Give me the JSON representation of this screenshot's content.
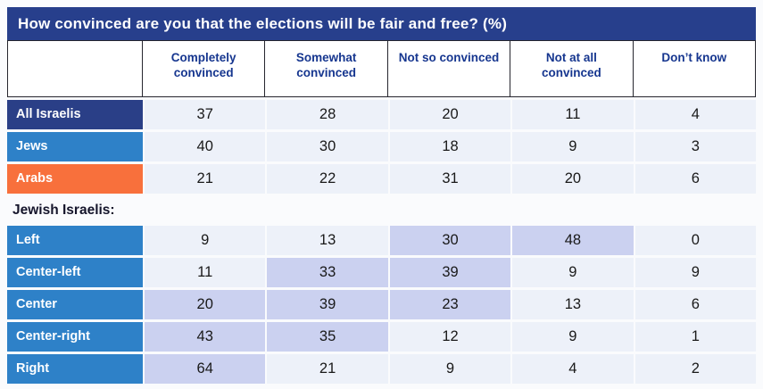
{
  "table": {
    "title": "How convinced are you that the elections will be fair and free? (%)",
    "header": [
      "",
      "Completely convinced",
      "Somewhat convinced",
      "Not so convinced",
      "Not at all convinced",
      "Don’t know"
    ],
    "rows": [
      {
        "type": "data",
        "label": "All Israelis",
        "label_bg": "#2A3F87",
        "values": [
          "37",
          "28",
          "20",
          "11",
          "4"
        ],
        "highlighted_cols": []
      },
      {
        "type": "data",
        "label": "Jews",
        "label_bg": "#2E81C8",
        "values": [
          "40",
          "30",
          "18",
          "9",
          "3"
        ],
        "highlighted_cols": []
      },
      {
        "type": "data",
        "label": "Arabs",
        "label_bg": "#F8703C",
        "values": [
          "21",
          "22",
          "31",
          "20",
          "6"
        ],
        "highlighted_cols": []
      },
      {
        "type": "section",
        "label": "Jewish Israelis:"
      },
      {
        "type": "data",
        "label": "Left",
        "label_bg": "#2E81C8",
        "values": [
          "9",
          "13",
          "30",
          "48",
          "0"
        ],
        "highlighted_cols": [
          2,
          3
        ]
      },
      {
        "type": "data",
        "label": "Center-left",
        "label_bg": "#2E81C8",
        "values": [
          "11",
          "33",
          "39",
          "9",
          "9"
        ],
        "highlighted_cols": [
          1,
          2
        ]
      },
      {
        "type": "data",
        "label": "Center",
        "label_bg": "#2E81C8",
        "values": [
          "20",
          "39",
          "23",
          "13",
          "6"
        ],
        "highlighted_cols": [
          0,
          1,
          2
        ]
      },
      {
        "type": "data",
        "label": "Center-right",
        "label_bg": "#2E81C8",
        "values": [
          "43",
          "35",
          "12",
          "9",
          "1"
        ],
        "highlighted_cols": [
          0,
          1
        ]
      },
      {
        "type": "data",
        "label": "Right",
        "label_bg": "#2E81C8",
        "values": [
          "64",
          "21",
          "9",
          "4",
          "2"
        ],
        "highlighted_cols": [
          0
        ]
      }
    ]
  },
  "colors": {
    "page_bg": "#FAFBFD",
    "title_bg": "#273F8C",
    "header_text": "#16368F",
    "header_border": "#26262E",
    "cell_bg": "#EDF1F9",
    "highlight_bg": "#CBD1F0",
    "navy_label": "#2A3F87",
    "blue_label": "#2E81C8",
    "orange_label": "#F8703C",
    "value_text": "#191919"
  },
  "chart_data": {
    "type": "table",
    "title": "How convinced are you that the elections will be fair and free? (%)",
    "categories": [
      "Completely convinced",
      "Somewhat convinced",
      "Not so convinced",
      "Not at all convinced",
      "Don’t know"
    ],
    "series": [
      {
        "name": "All Israelis",
        "group": "All",
        "values": [
          37,
          28,
          20,
          11,
          4
        ]
      },
      {
        "name": "Jews",
        "group": "All",
        "values": [
          40,
          30,
          18,
          9,
          3
        ]
      },
      {
        "name": "Arabs",
        "group": "All",
        "values": [
          21,
          22,
          31,
          20,
          6
        ]
      },
      {
        "name": "Left",
        "group": "Jewish Israelis:",
        "values": [
          9,
          13,
          30,
          48,
          0
        ]
      },
      {
        "name": "Center-left",
        "group": "Jewish Israelis:",
        "values": [
          11,
          33,
          39,
          9,
          9
        ]
      },
      {
        "name": "Center",
        "group": "Jewish Israelis:",
        "values": [
          20,
          39,
          23,
          13,
          6
        ]
      },
      {
        "name": "Center-right",
        "group": "Jewish Israelis:",
        "values": [
          43,
          35,
          12,
          9,
          1
        ]
      },
      {
        "name": "Right",
        "group": "Jewish Israelis:",
        "values": [
          64,
          21,
          9,
          4,
          2
        ]
      }
    ],
    "highlighted_cells": [
      {
        "row": "Left",
        "columns": [
          "Not so convinced",
          "Not at all convinced"
        ]
      },
      {
        "row": "Center-left",
        "columns": [
          "Somewhat convinced",
          "Not so convinced"
        ]
      },
      {
        "row": "Center",
        "columns": [
          "Completely convinced",
          "Somewhat convinced",
          "Not so convinced"
        ]
      },
      {
        "row": "Center-right",
        "columns": [
          "Completely convinced",
          "Somewhat convinced"
        ]
      },
      {
        "row": "Right",
        "columns": [
          "Completely convinced"
        ]
      }
    ],
    "units": "percent"
  }
}
